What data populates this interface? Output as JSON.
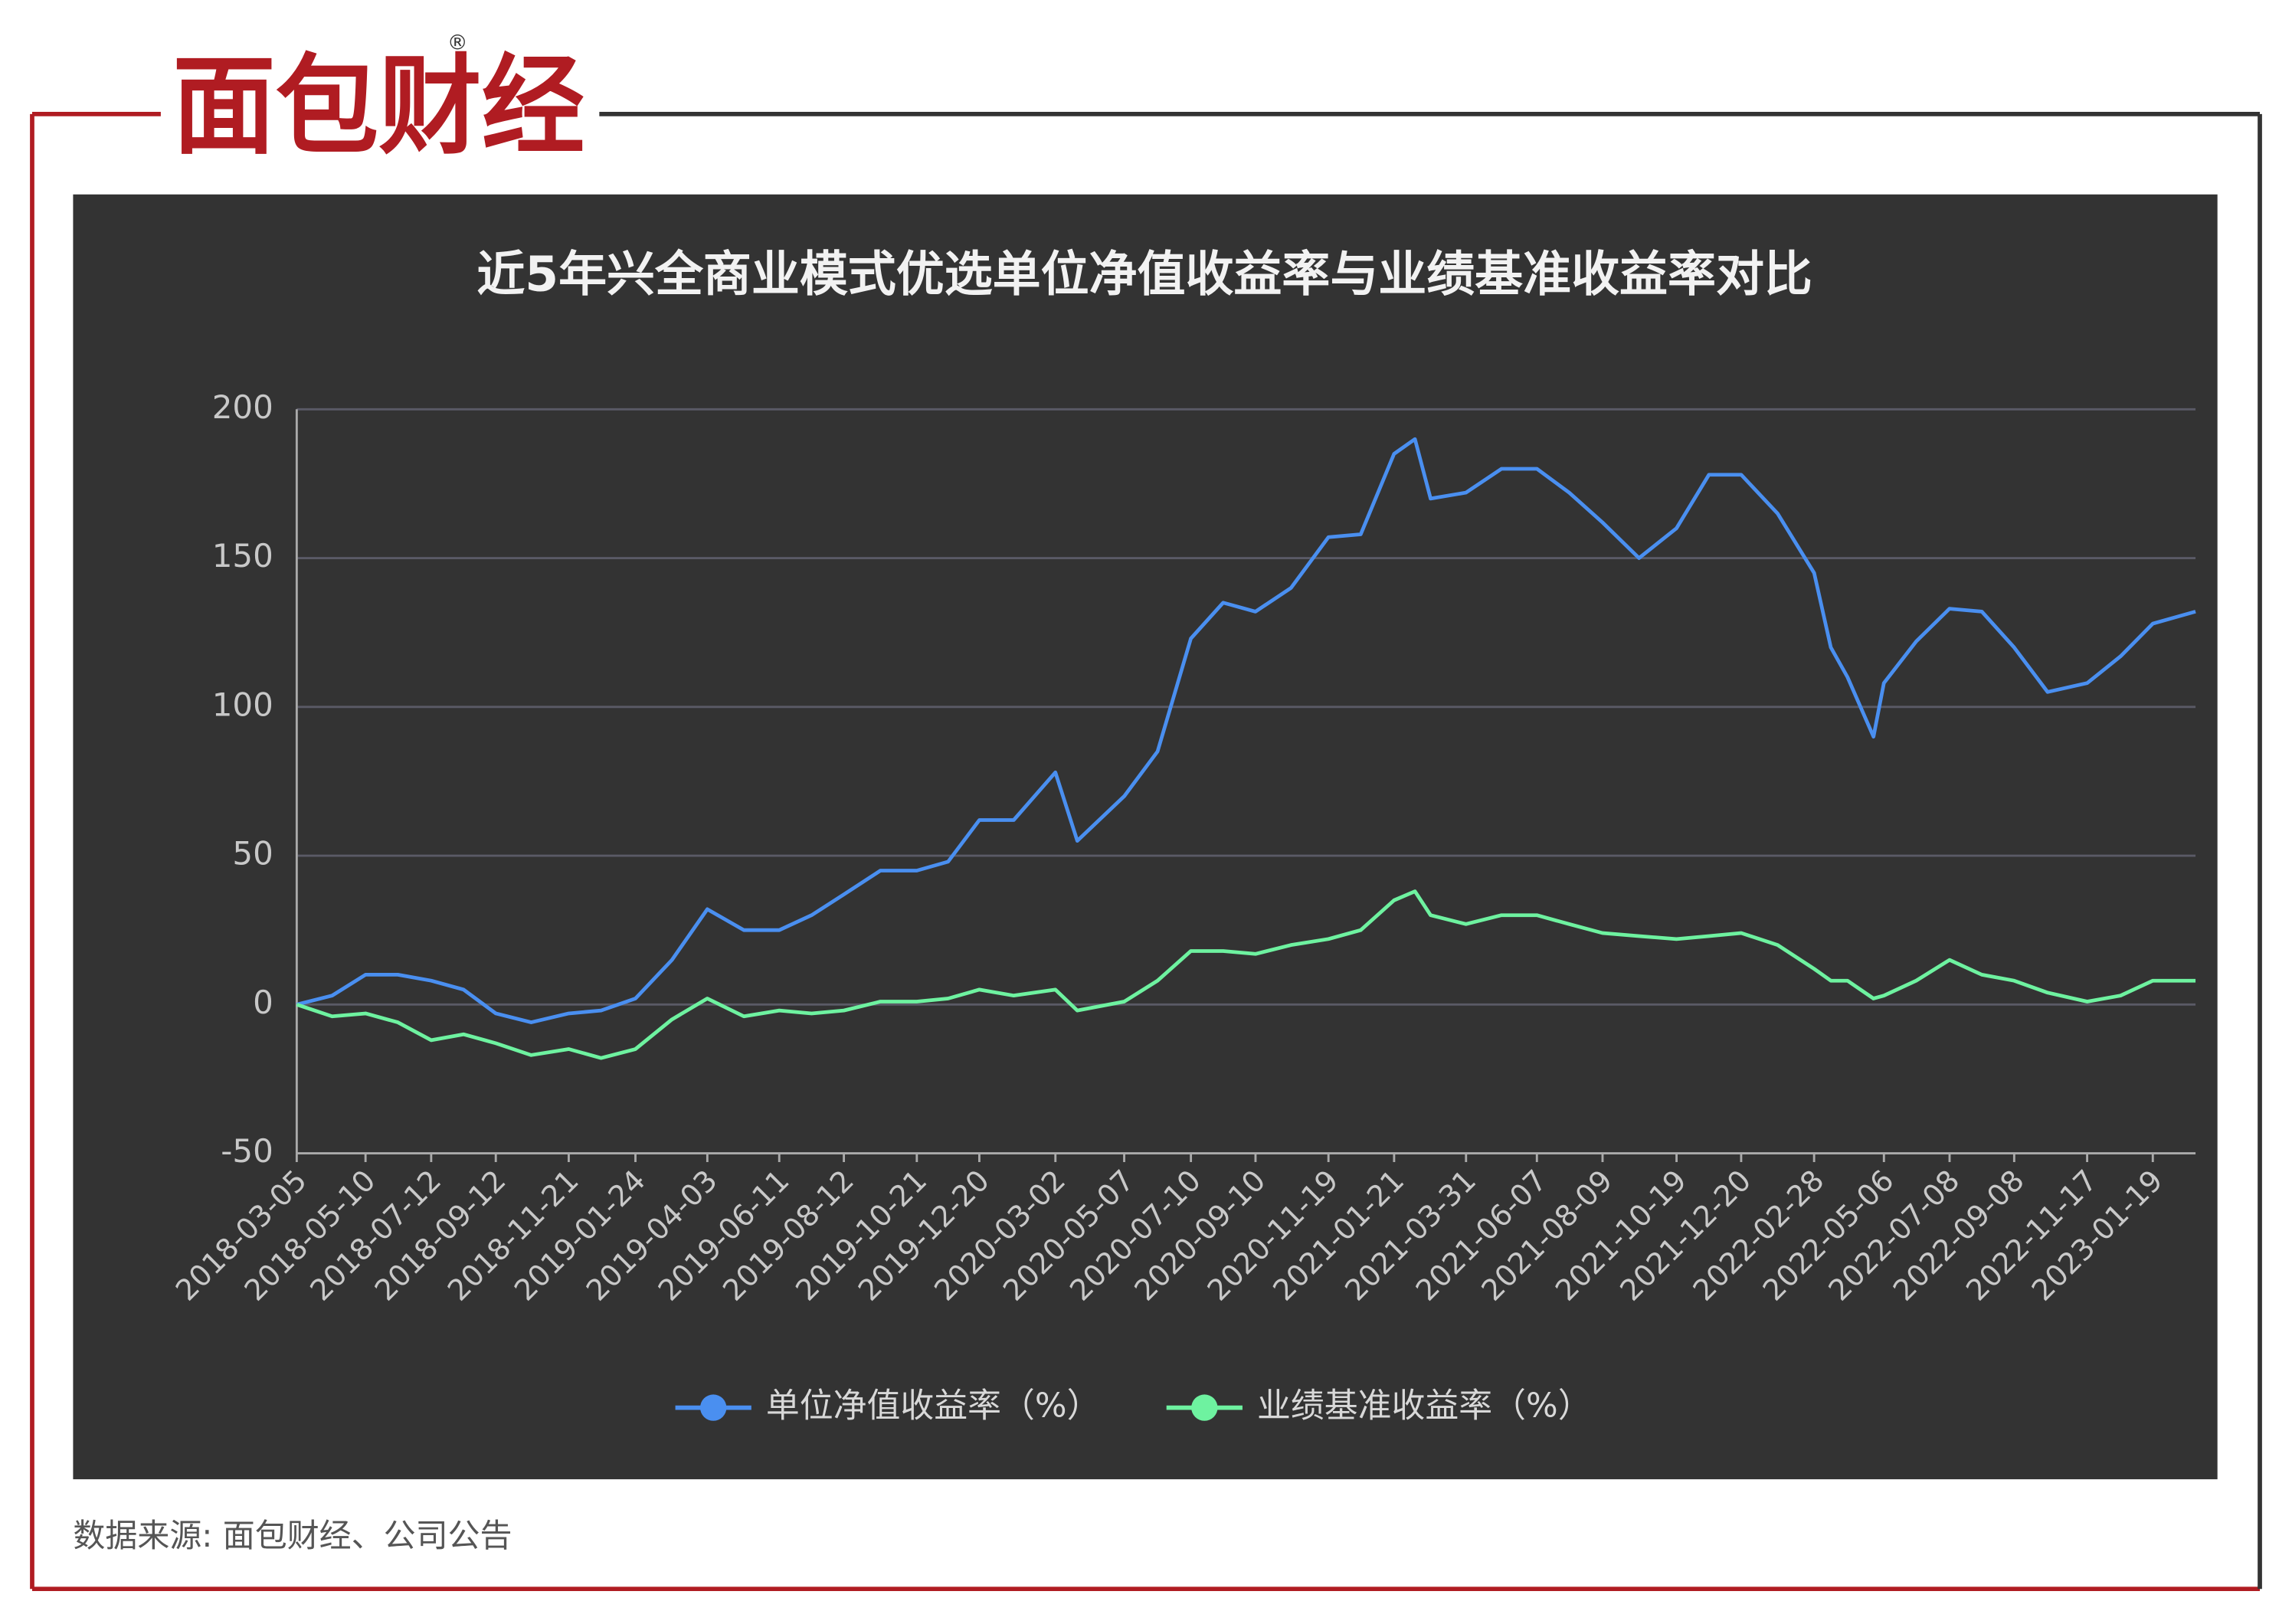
{
  "logo": "面包财经",
  "logo_mark": "®",
  "source": "数据来源: 面包财经、公司公告",
  "chart_data": {
    "type": "line",
    "title": "近5年兴全商业模式优选单位净值收益率与业绩基准收益率对比",
    "x": [
      "2018-03-05",
      "2018-04-08",
      "2018-05-10",
      "2018-06-10",
      "2018-07-12",
      "2018-08-12",
      "2018-09-12",
      "2018-10-16",
      "2018-11-21",
      "2018-12-22",
      "2019-01-24",
      "2019-02-28",
      "2019-04-03",
      "2019-05-08",
      "2019-06-11",
      "2019-07-12",
      "2019-08-12",
      "2019-09-16",
      "2019-10-21",
      "2019-11-20",
      "2019-12-20",
      "2020-01-22",
      "2020-03-02",
      "2020-03-23",
      "2020-05-07",
      "2020-06-08",
      "2020-07-10",
      "2020-08-10",
      "2020-09-10",
      "2020-10-14",
      "2020-11-19",
      "2020-12-20",
      "2021-01-21",
      "2021-02-10",
      "2021-02-25",
      "2021-03-31",
      "2021-05-04",
      "2021-06-07",
      "2021-07-08",
      "2021-08-09",
      "2021-09-13",
      "2021-10-19",
      "2021-11-19",
      "2021-12-20",
      "2022-01-24",
      "2022-02-28",
      "2022-03-16",
      "2022-04-01",
      "2022-04-26",
      "2022-05-06",
      "2022-06-06",
      "2022-07-08",
      "2022-08-08",
      "2022-09-08",
      "2022-10-10",
      "2022-11-17",
      "2022-12-19",
      "2023-01-19",
      "2023-03-01"
    ],
    "series": [
      {
        "name": "单位净值收益率（%）",
        "color": "#4a8ff0",
        "values": [
          0,
          3,
          10,
          10,
          8,
          5,
          -3,
          -6,
          -3,
          -2,
          2,
          15,
          32,
          25,
          25,
          30,
          37,
          45,
          45,
          48,
          62,
          62,
          78,
          55,
          70,
          85,
          123,
          135,
          132,
          140,
          157,
          158,
          185,
          190,
          170,
          172,
          180,
          180,
          172,
          162,
          150,
          160,
          178,
          178,
          165,
          145,
          120,
          110,
          90,
          108,
          122,
          133,
          132,
          120,
          105,
          108,
          117,
          128,
          132
        ]
      },
      {
        "name": "业绩基准收益率（%）",
        "color": "#6ef2a0",
        "values": [
          0,
          -4,
          -3,
          -6,
          -12,
          -10,
          -13,
          -17,
          -15,
          -18,
          -15,
          -5,
          2,
          -4,
          -2,
          -3,
          -2,
          1,
          1,
          2,
          5,
          3,
          5,
          -2,
          1,
          8,
          18,
          18,
          17,
          20,
          22,
          25,
          35,
          38,
          30,
          27,
          30,
          30,
          27,
          24,
          23,
          22,
          23,
          24,
          20,
          12,
          8,
          8,
          2,
          3,
          8,
          15,
          10,
          8,
          4,
          1,
          3,
          8,
          8
        ]
      }
    ],
    "xlim": [
      "2018-03-05",
      "2023-03-01"
    ],
    "xticks": [
      "2018-03-05",
      "2018-05-10",
      "2018-07-12",
      "2018-09-12",
      "2018-11-21",
      "2019-01-24",
      "2019-04-03",
      "2019-06-11",
      "2019-08-12",
      "2019-10-21",
      "2019-12-20",
      "2020-03-02",
      "2020-05-07",
      "2020-07-10",
      "2020-09-10",
      "2020-11-19",
      "2021-01-21",
      "2021-03-31",
      "2021-06-07",
      "2021-08-09",
      "2021-10-19",
      "2021-12-20",
      "2022-02-28",
      "2022-05-06",
      "2022-07-08",
      "2022-09-08",
      "2022-11-17",
      "2023-01-19"
    ],
    "ylim": [
      -50,
      200
    ],
    "yticks": [
      -50,
      0,
      50,
      100,
      150,
      200
    ],
    "grid": true,
    "legend": "bottom"
  }
}
